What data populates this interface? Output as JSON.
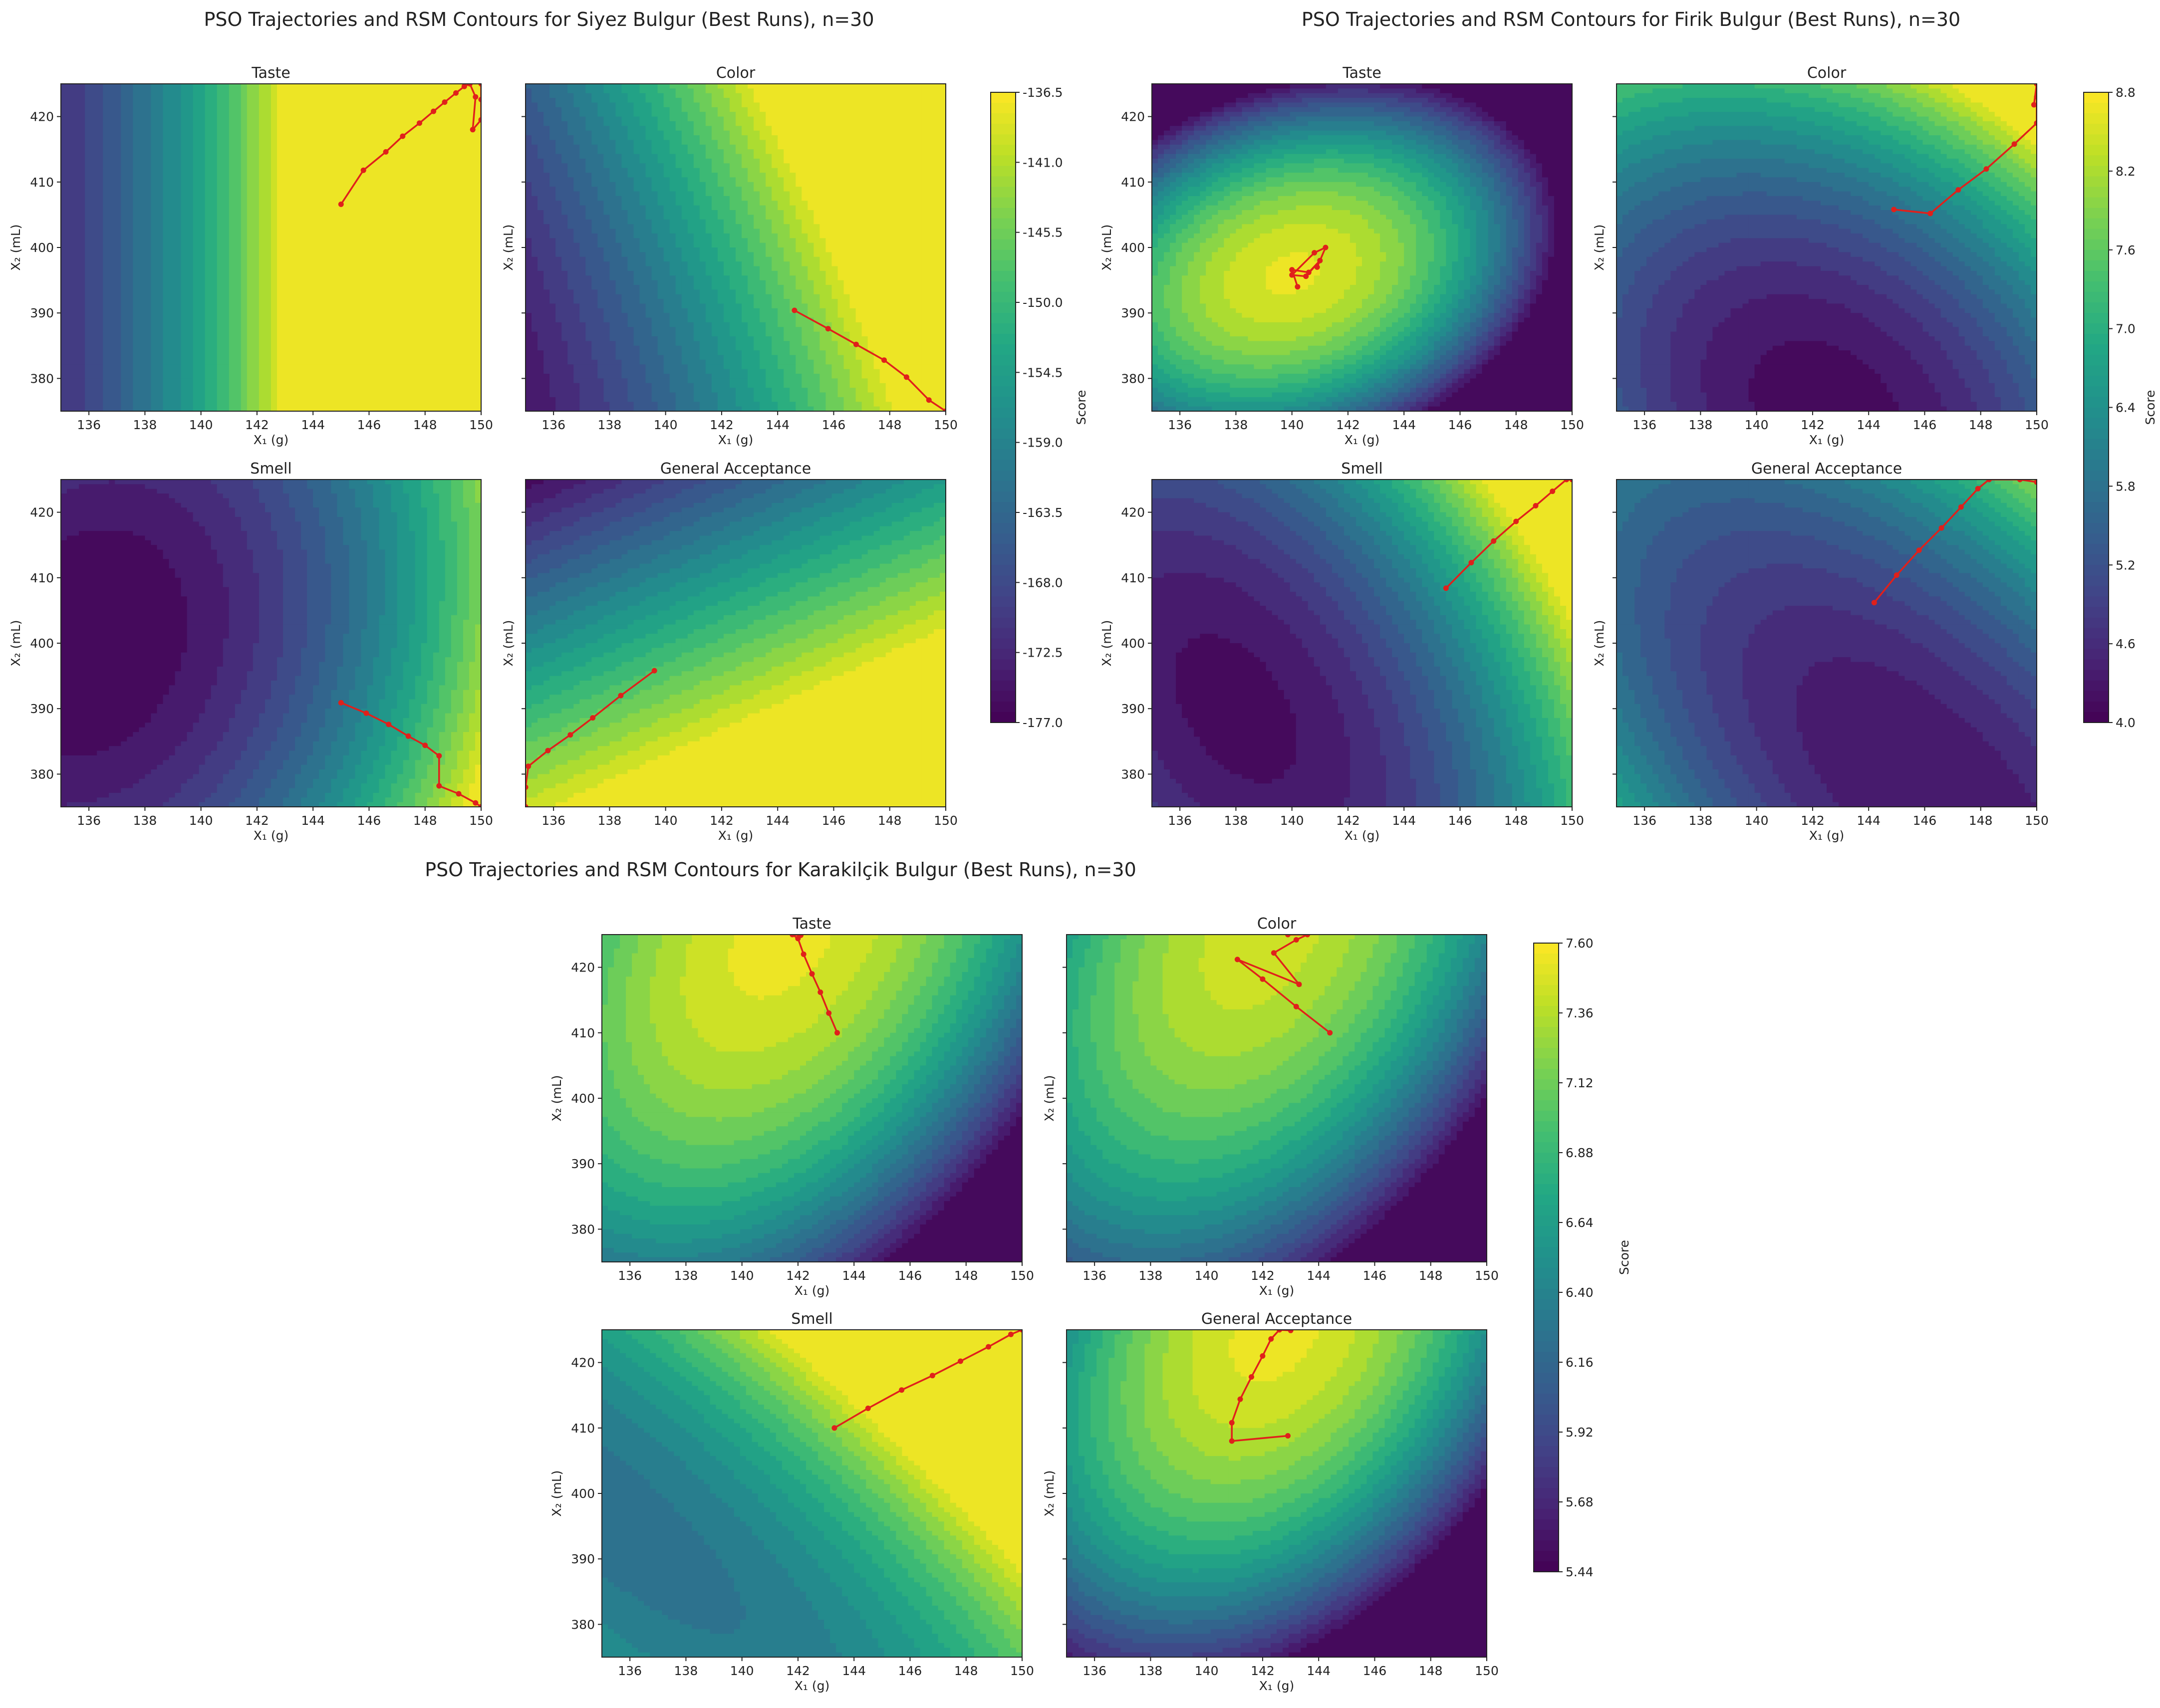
{
  "chart_data": [
    {
      "type": "contour",
      "title": "PSO Trajectories and RSM Contours for Siyez Bulgur (Best Runs), n=30",
      "xlabel": "X₁ (g)",
      "ylabel": "X₂ (mL)",
      "xlim": [
        135,
        150
      ],
      "ylim": [
        375,
        425
      ],
      "xticks": [
        136,
        138,
        140,
        142,
        144,
        146,
        148,
        150
      ],
      "yticks": [
        380,
        390,
        400,
        410,
        420
      ],
      "colorbar": {
        "label": "Score",
        "min": -177.0,
        "max": -136.5,
        "ticks": [
          "-136.5",
          "-141.0",
          "-145.5",
          "-150.0",
          "-154.5",
          "-159.0",
          "-163.5",
          "-168.0",
          "-172.5",
          "-177.0"
        ]
      },
      "panels": [
        {
          "title": "Taste",
          "show_ylabel": true,
          "field": {
            "x0": 135,
            "y0": 400,
            "ax": 0.06,
            "ay": 0.0,
            "bxx": 0.0055,
            "byy": 0.0,
            "bxy": 0.0,
            "base": 0.15
          },
          "trajectory": [
            [
              145.0,
              406.6
            ],
            [
              145.8,
              411.8
            ],
            [
              146.6,
              414.6
            ],
            [
              147.2,
              417.0
            ],
            [
              147.8,
              419.0
            ],
            [
              148.3,
              420.8
            ],
            [
              148.7,
              422.2
            ],
            [
              149.1,
              423.6
            ],
            [
              149.4,
              424.6
            ],
            [
              149.6,
              425.0
            ],
            [
              149.8,
              423.0
            ],
            [
              149.7,
              418.0
            ],
            [
              150.0,
              419.5
            ],
            [
              150.0,
              422.6
            ],
            [
              150.0,
              425.0
            ]
          ]
        },
        {
          "title": "Color",
          "show_ylabel": true,
          "field": {
            "x0": 135,
            "y0": 375,
            "ax": 0.045,
            "ay": 0.002,
            "bxx": 0.0018,
            "byy": 6e-05,
            "bxy": 0.00045,
            "base": 0.05
          },
          "trajectory": [
            [
              144.6,
              390.4
            ],
            [
              145.8,
              387.6
            ],
            [
              146.8,
              385.2
            ],
            [
              147.8,
              382.8
            ],
            [
              148.6,
              380.2
            ],
            [
              149.4,
              376.7
            ],
            [
              150.0,
              375.0
            ]
          ]
        },
        {
          "title": "Smell",
          "show_ylabel": true,
          "field": {
            "x0": 136,
            "y0": 400,
            "ax": 0.0,
            "ay": 0.0,
            "bxx": 0.0042,
            "byy": 0.00017,
            "bxy": -0.0003,
            "base": 0.0
          },
          "trajectory": [
            [
              145.0,
              390.9
            ],
            [
              145.9,
              389.3
            ],
            [
              146.7,
              387.6
            ],
            [
              147.4,
              385.8
            ],
            [
              148.0,
              384.4
            ],
            [
              148.5,
              382.8
            ],
            [
              148.5,
              378.2
            ],
            [
              149.2,
              377.0
            ],
            [
              149.8,
              375.6
            ],
            [
              150.0,
              375.0
            ]
          ]
        },
        {
          "title": "General Acceptance",
          "show_ylabel": true,
          "field": {
            "x0": 135,
            "y0": 375,
            "ax": 0.035,
            "ay": -0.018,
            "bxx": 0.0,
            "byy": 0.0,
            "bxy": 0.0,
            "base": 0.92
          },
          "trajectory": [
            [
              139.6,
              395.8
            ],
            [
              138.4,
              392.0
            ],
            [
              137.4,
              388.6
            ],
            [
              136.6,
              386.0
            ],
            [
              135.8,
              383.6
            ],
            [
              135.1,
              381.2
            ],
            [
              135.0,
              378.0
            ],
            [
              135.0,
              375.0
            ]
          ]
        }
      ]
    },
    {
      "type": "contour",
      "title": "PSO Trajectories and RSM Contours for Firik Bulgur (Best Runs), n=30",
      "xlabel": "X₁ (g)",
      "ylabel": "X₂ (mL)",
      "xlim": [
        135,
        150
      ],
      "ylim": [
        375,
        425
      ],
      "xticks": [
        136,
        138,
        140,
        142,
        144,
        146,
        148,
        150
      ],
      "yticks": [
        380,
        390,
        400,
        410,
        420
      ],
      "colorbar": {
        "label": "Score",
        "min": 4.0,
        "max": 8.8,
        "ticks": [
          "8.8",
          "8.2",
          "7.6",
          "7.0",
          "6.4",
          "5.8",
          "5.2",
          "4.6",
          "4.0"
        ]
      },
      "panels": [
        {
          "title": "Taste",
          "show_ylabel": true,
          "field": {
            "mode": "peak",
            "cx": 140.0,
            "cy": 396.0,
            "sx": 0.011,
            "sy": 0.0011,
            "sxy": 0.0017,
            "base": 0.96
          },
          "trajectory": [
            [
              140.2,
              394.0
            ],
            [
              140.0,
              396.6
            ],
            [
              140.6,
              396.2
            ],
            [
              141.0,
              398.0
            ],
            [
              140.5,
              395.6
            ],
            [
              140.0,
              395.8
            ],
            [
              140.8,
              399.2
            ],
            [
              141.2,
              400.0
            ],
            [
              140.9,
              397.0
            ]
          ]
        },
        {
          "title": "Color",
          "show_ylabel": true,
          "field": {
            "x0": 142.5,
            "y0": 375,
            "ax": 0.0,
            "ay": 0.0,
            "bxx": 0.0045,
            "byy": 0.00028,
            "bxy": 0.0007,
            "base": 0.02
          },
          "trajectory": [
            [
              144.9,
              405.8
            ],
            [
              146.2,
              405.2
            ],
            [
              147.2,
              408.8
            ],
            [
              148.2,
              412.0
            ],
            [
              149.2,
              415.8
            ],
            [
              150.0,
              419.0
            ],
            [
              150.0,
              423.0
            ],
            [
              150.0,
              425.0
            ],
            [
              149.9,
              421.8
            ]
          ]
        },
        {
          "title": "Smell",
          "show_ylabel": true,
          "field": {
            "x0": 138,
            "y0": 390,
            "ax": 0.0,
            "ay": 0.0,
            "bxx": 0.0052,
            "byy": 0.0002,
            "bxy": 0.0009,
            "base": 0.03
          },
          "trajectory": [
            [
              145.5,
              408.4
            ],
            [
              146.4,
              412.3
            ],
            [
              147.2,
              415.6
            ],
            [
              148.0,
              418.6
            ],
            [
              148.7,
              421.0
            ],
            [
              149.3,
              423.2
            ],
            [
              149.8,
              425.0
            ],
            [
              150.0,
              425.0
            ]
          ]
        },
        {
          "title": "General Acceptance",
          "show_ylabel": true,
          "field": {
            "x0": 146,
            "y0": 378,
            "ax": 0.0,
            "ay": 0.0,
            "bxx": 0.004,
            "byy": 0.00022,
            "bxy": 0.0012,
            "base": 0.05
          },
          "trajectory": [
            [
              144.2,
              406.2
            ],
            [
              145.0,
              410.4
            ],
            [
              145.8,
              414.2
            ],
            [
              146.6,
              417.6
            ],
            [
              147.3,
              420.8
            ],
            [
              147.9,
              423.6
            ],
            [
              148.3,
              425.0
            ],
            [
              149.4,
              425.0
            ],
            [
              150.0,
              424.6
            ]
          ]
        }
      ]
    },
    {
      "type": "contour",
      "title": "PSO Trajectories and RSM Contours for Karakilçik Bulgur (Best Runs), n=30",
      "xlabel": "X₁ (g)",
      "ylabel": "X₂ (mL)",
      "xlim": [
        135,
        150
      ],
      "ylim": [
        375,
        425
      ],
      "xticks": [
        136,
        138,
        140,
        142,
        144,
        146,
        148,
        150
      ],
      "yticks": [
        380,
        390,
        400,
        410,
        420
      ],
      "colorbar": {
        "label": "Score",
        "min": 5.44,
        "max": 7.6,
        "ticks": [
          "7.60",
          "7.36",
          "7.12",
          "6.88",
          "6.64",
          "6.40",
          "6.16",
          "5.92",
          "5.68",
          "5.44"
        ]
      },
      "panels": [
        {
          "title": "Taste",
          "show_ylabel": true,
          "field": {
            "mode": "peak",
            "cx": 141.5,
            "cy": 425.0,
            "sx": 0.0065,
            "sy": 0.00026,
            "sxy": 0.0011,
            "base": 0.97
          },
          "trajectory": [
            [
              143.4,
              410.0
            ],
            [
              143.1,
              413.0
            ],
            [
              142.8,
              416.2
            ],
            [
              142.5,
              419.0
            ],
            [
              142.2,
              422.0
            ],
            [
              142.0,
              424.4
            ],
            [
              141.8,
              425.0
            ],
            [
              142.1,
              424.9
            ]
          ]
        },
        {
          "title": "Color",
          "show_ylabel": true,
          "field": {
            "mode": "peak",
            "cx": 142.0,
            "cy": 425.0,
            "sx": 0.0075,
            "sy": 0.00028,
            "sxy": 0.0012,
            "base": 0.93
          },
          "trajectory": [
            [
              144.4,
              410.0
            ],
            [
              143.2,
              414.0
            ],
            [
              142.0,
              418.2
            ],
            [
              141.1,
              421.2
            ],
            [
              143.3,
              417.4
            ],
            [
              142.4,
              422.2
            ],
            [
              143.2,
              424.2
            ],
            [
              143.6,
              425.0
            ],
            [
              142.9,
              425.0
            ]
          ]
        },
        {
          "title": "Smell",
          "show_ylabel": true,
          "field": {
            "x0": 138,
            "y0": 400,
            "ax": 0.025,
            "ay": 0.006,
            "bxx": 0.0035,
            "byy": 0.00025,
            "bxy": 0.0016,
            "base": 0.42
          },
          "trajectory": [
            [
              143.3,
              410.0
            ],
            [
              144.5,
              413.0
            ],
            [
              145.7,
              415.8
            ],
            [
              146.8,
              418.0
            ],
            [
              147.8,
              420.2
            ],
            [
              148.8,
              422.4
            ],
            [
              149.6,
              424.3
            ],
            [
              150.0,
              425.0
            ]
          ]
        },
        {
          "title": "General Acceptance",
          "show_ylabel": true,
          "field": {
            "mode": "peak",
            "cx": 142.5,
            "cy": 425.0,
            "sx": 0.0085,
            "sy": 0.00036,
            "sxy": 0.0013,
            "base": 0.97
          },
          "trajectory": [
            [
              142.9,
              408.8
            ],
            [
              140.9,
              408.0
            ],
            [
              140.9,
              410.8
            ],
            [
              141.2,
              414.4
            ],
            [
              141.6,
              417.8
            ],
            [
              142.0,
              421.0
            ],
            [
              142.3,
              423.6
            ],
            [
              142.6,
              425.0
            ],
            [
              143.0,
              424.9
            ]
          ]
        }
      ]
    }
  ]
}
